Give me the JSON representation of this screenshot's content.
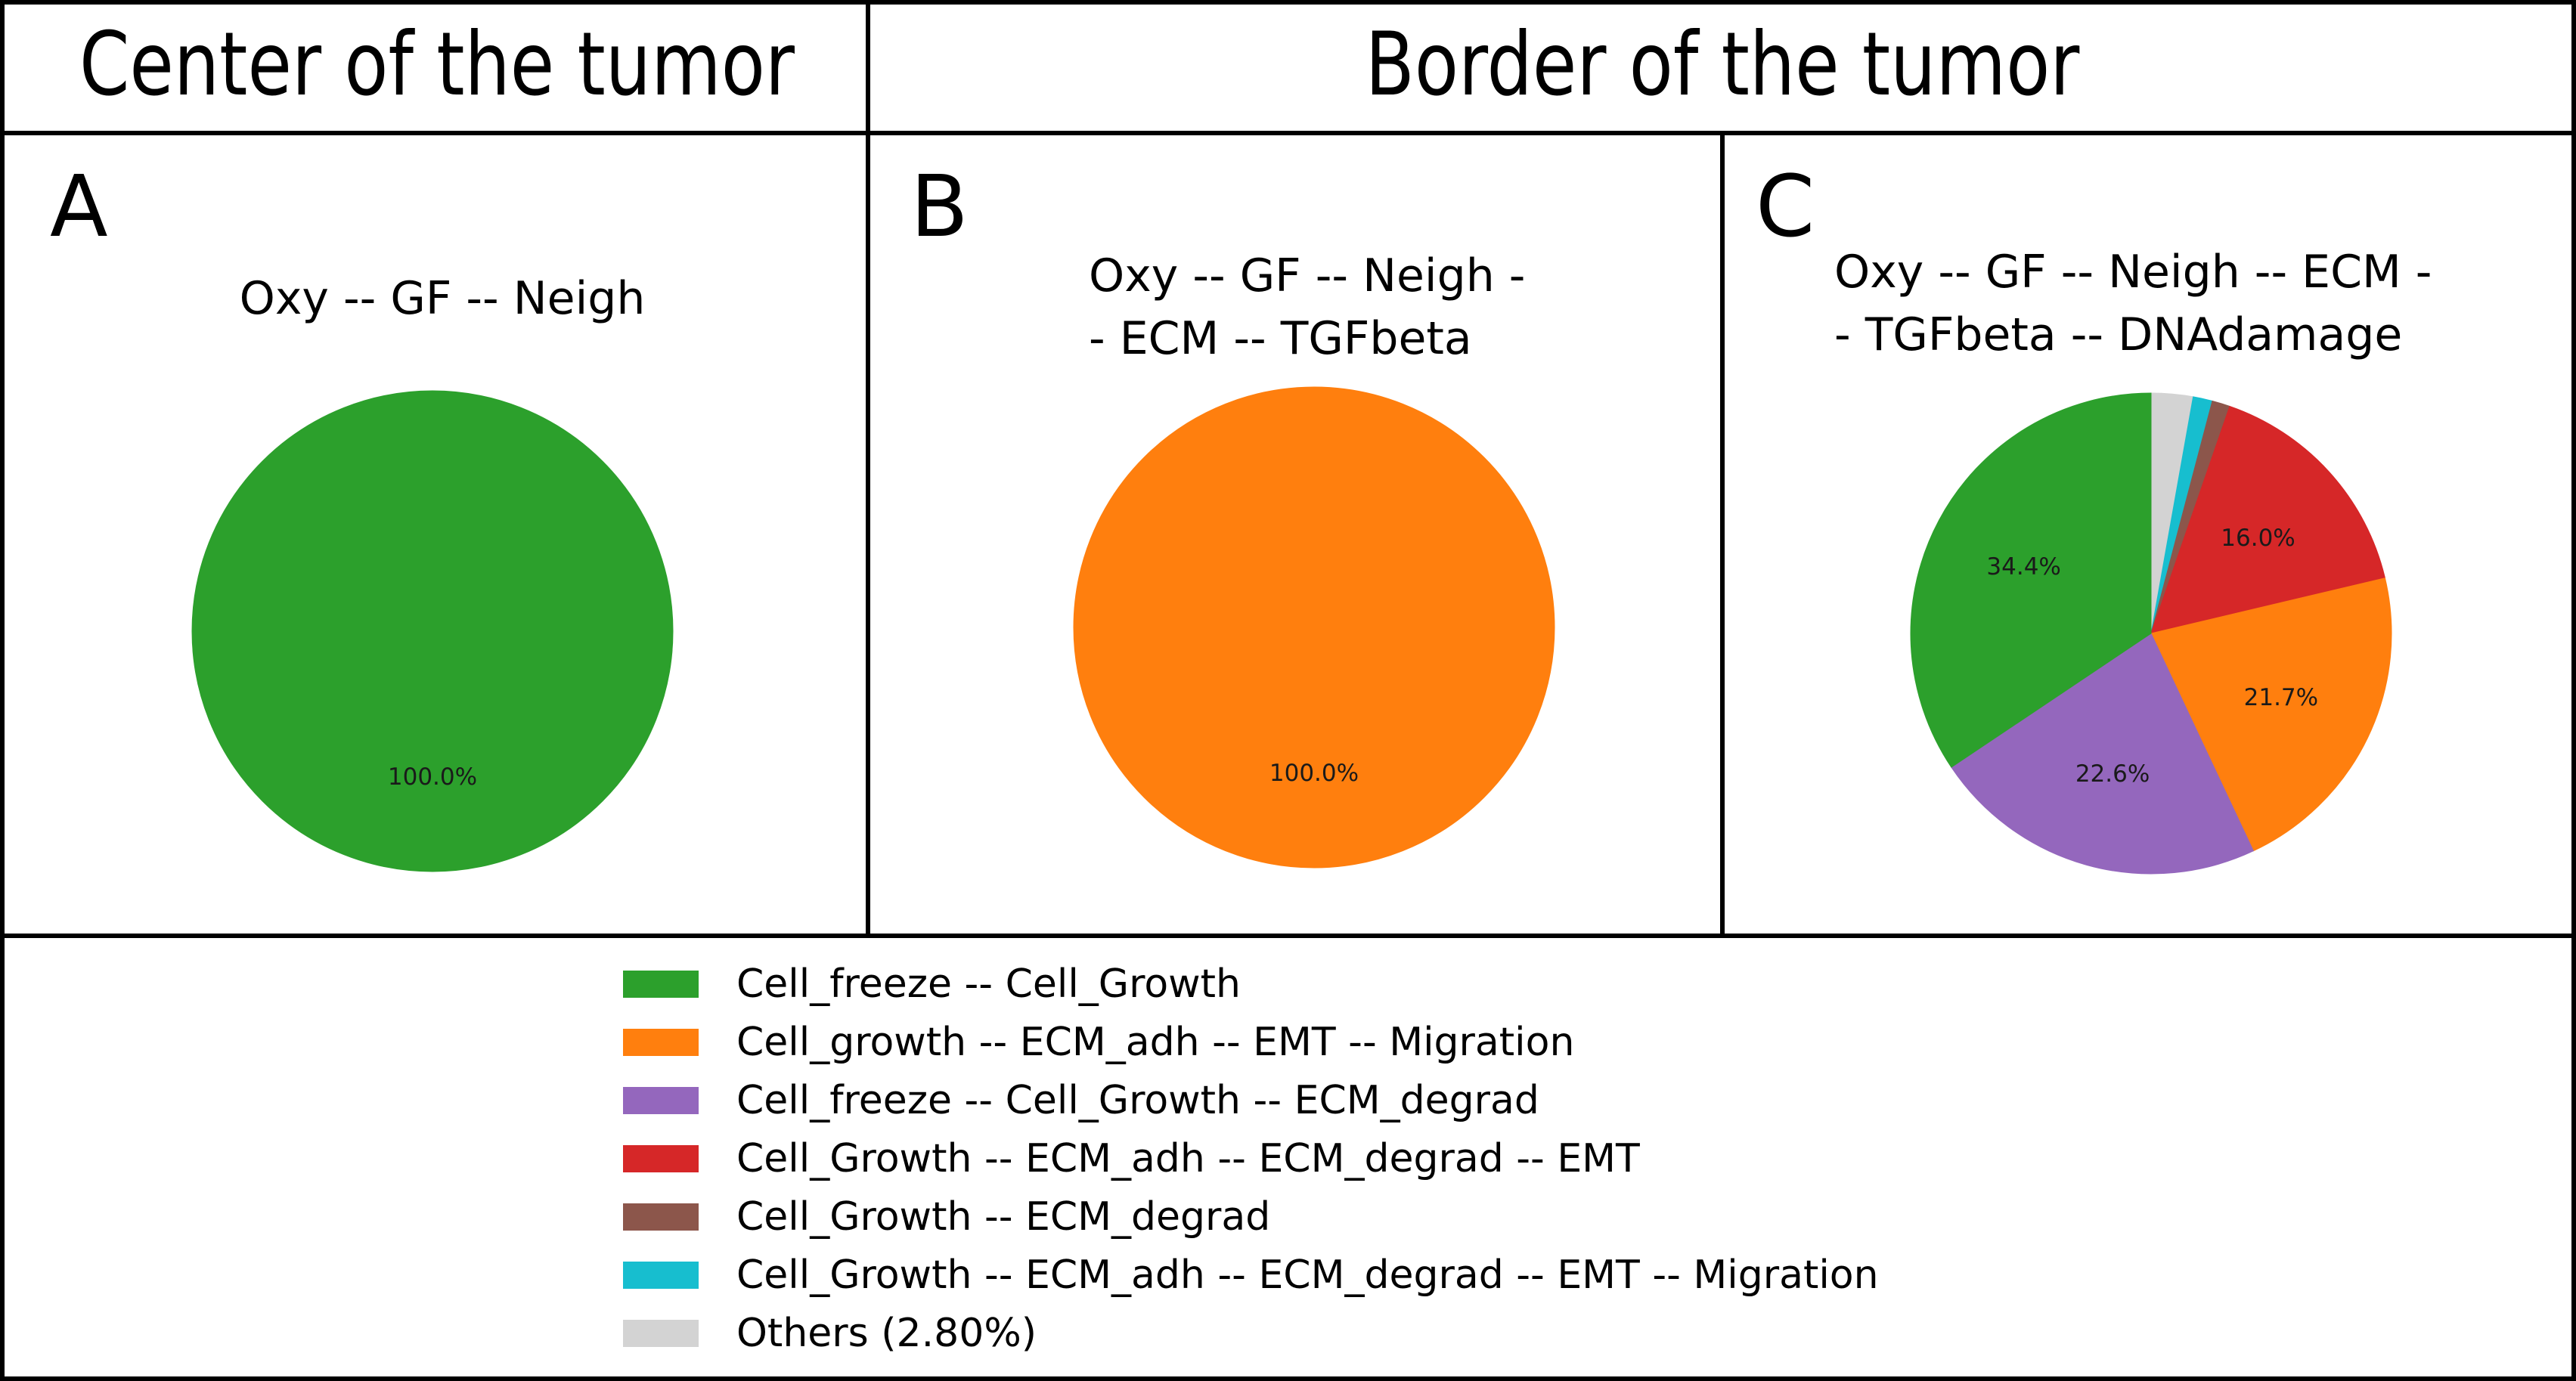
{
  "headers": {
    "center": "Center of the tumor",
    "border": "Border of the tumor"
  },
  "panels": [
    {
      "letter": "A",
      "title_lines": [
        "Oxy -- GF -- Neigh"
      ]
    },
    {
      "letter": "B",
      "title_lines": [
        "Oxy -- GF -- Neigh -",
        "- ECM -- TGFbeta"
      ]
    },
    {
      "letter": "C",
      "title_lines": [
        "Oxy -- GF -- Neigh -- ECM -",
        "- TGFbeta -- DNAdamage"
      ]
    }
  ],
  "legend": [
    {
      "label": "Cell_freeze -- Cell_Growth",
      "color": "#2ca02c"
    },
    {
      "label": "Cell_growth -- ECM_adh -- EMT -- Migration",
      "color": "#ff7f0e"
    },
    {
      "label": "Cell_freeze -- Cell_Growth -- ECM_degrad",
      "color": "#9467bd"
    },
    {
      "label": "Cell_Growth -- ECM_adh -- ECM_degrad -- EMT",
      "color": "#d62728"
    },
    {
      "label": "Cell_Growth -- ECM_degrad",
      "color": "#8c564b"
    },
    {
      "label": "Cell_Growth -- ECM_adh -- ECM_degrad -- EMT -- Migration",
      "color": "#17becf"
    },
    {
      "label": "Others (2.80%)",
      "color": "#d3d3d3"
    }
  ],
  "chart_data": [
    {
      "type": "pie",
      "panel": "A",
      "title": "Oxy -- GF -- Neigh",
      "slices": [
        {
          "category": "Cell_freeze -- Cell_Growth",
          "value": 100.0,
          "label": "100.0%",
          "color": "#2ca02c"
        }
      ]
    },
    {
      "type": "pie",
      "panel": "B",
      "title": "Oxy -- GF -- Neigh -- ECM -- TGFbeta",
      "slices": [
        {
          "category": "Cell_growth -- ECM_adh -- EMT -- Migration",
          "value": 100.0,
          "label": "100.0%",
          "color": "#ff7f0e"
        }
      ]
    },
    {
      "type": "pie",
      "panel": "C",
      "title": "Oxy -- GF -- Neigh -- ECM -- TGFbeta -- DNAdamage",
      "slices": [
        {
          "category": "Others (2.80%)",
          "value": 2.8,
          "label": "",
          "color": "#d3d3d3"
        },
        {
          "category": "Cell_Growth -- ECM_adh -- ECM_degrad -- EMT -- Migration",
          "value": 1.3,
          "label": "",
          "color": "#17becf"
        },
        {
          "category": "Cell_Growth -- ECM_degrad",
          "value": 1.2,
          "label": "",
          "color": "#8c564b"
        },
        {
          "category": "Cell_Growth -- ECM_adh -- ECM_degrad -- EMT",
          "value": 16.0,
          "label": "16.0%",
          "color": "#d62728"
        },
        {
          "category": "Cell_growth -- ECM_adh -- EMT -- Migration",
          "value": 21.7,
          "label": "21.7%",
          "color": "#ff7f0e"
        },
        {
          "category": "Cell_freeze -- Cell_Growth -- ECM_degrad",
          "value": 22.6,
          "label": "22.6%",
          "color": "#9467bd"
        },
        {
          "category": "Cell_freeze -- Cell_Growth",
          "value": 34.4,
          "label": "34.4%",
          "color": "#2ca02c"
        }
      ]
    }
  ]
}
